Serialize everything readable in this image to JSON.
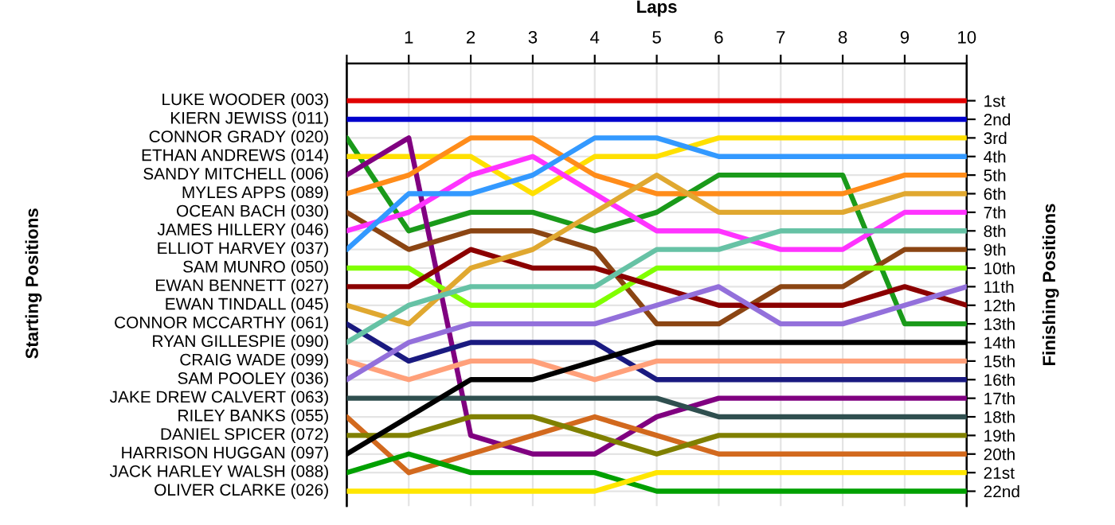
{
  "chart_data": {
    "type": "line",
    "xlabel": "Laps",
    "annotations": [
      "Starting Positions"
    ],
    "y2label": "Finishing Positions",
    "x": [
      0,
      1,
      2,
      3,
      4,
      5,
      6,
      7,
      8,
      9,
      10
    ],
    "xlim": [
      0,
      10
    ],
    "xticks": [
      {
        "value": 0,
        "label": null
      },
      1,
      2,
      3,
      4,
      5,
      6,
      7,
      8,
      9,
      10
    ],
    "y2lim": [
      22.8,
      -1
    ],
    "y2ticks": [
      {
        "value": 1,
        "label": "1st"
      },
      {
        "value": 2,
        "label": "2nd"
      },
      {
        "value": 3,
        "label": "3rd"
      },
      {
        "value": 4,
        "label": "4th"
      },
      {
        "value": 5,
        "label": "5th"
      },
      {
        "value": 6,
        "label": "6th"
      },
      {
        "value": 7,
        "label": "7th"
      },
      {
        "value": 8,
        "label": "8th"
      },
      {
        "value": 9,
        "label": "9th"
      },
      {
        "value": 10,
        "label": "10th"
      },
      {
        "value": 11,
        "label": "11th"
      },
      {
        "value": 12,
        "label": "12th"
      },
      {
        "value": 13,
        "label": "13th"
      },
      {
        "value": 14,
        "label": "14th"
      },
      {
        "value": 15,
        "label": "15th"
      },
      {
        "value": 16,
        "label": "16th"
      },
      {
        "value": 17,
        "label": "17th"
      },
      {
        "value": 18,
        "label": "18th"
      },
      {
        "value": 19,
        "label": "19th"
      },
      {
        "value": 20,
        "label": "20th"
      },
      {
        "value": 21,
        "label": "21st"
      },
      {
        "value": 22,
        "label": "22nd"
      }
    ],
    "grid": true,
    "marker": "none",
    "line_style": "solid",
    "series": [
      {
        "name": "LUKE WOODER (003)",
        "axis": "y2",
        "color": "#e00000",
        "values": [
          1,
          1,
          1,
          1,
          1,
          1,
          1,
          1,
          1,
          1,
          1
        ]
      },
      {
        "name": "KIERN JEWISS (011)",
        "axis": "y2",
        "color": "#0000cc",
        "values": [
          2,
          2,
          2,
          2,
          2,
          2,
          2,
          2,
          2,
          2,
          2
        ]
      },
      {
        "name": "CONNOR GRADY (020)",
        "axis": "y2",
        "color": "#1a9a1a",
        "values": [
          3,
          8,
          7,
          7,
          8,
          7,
          5,
          5,
          5,
          13,
          13
        ]
      },
      {
        "name": "ETHAN ANDREWS (014)",
        "axis": "y2",
        "color": "#ffe000",
        "values": [
          4,
          4,
          4,
          6,
          4,
          4,
          3,
          3,
          3,
          3,
          3
        ]
      },
      {
        "name": "SANDY MITCHELL (006)",
        "axis": "y2",
        "color": "#800080",
        "values": [
          5,
          3,
          19,
          20,
          20,
          18,
          17,
          17,
          17,
          17,
          17
        ]
      },
      {
        "name": "MYLES APPS (089)",
        "axis": "y2",
        "color": "#ff8c1a",
        "values": [
          6,
          5,
          3,
          3,
          5,
          6,
          6,
          6,
          6,
          5,
          5
        ]
      },
      {
        "name": "OCEAN BACH (030)",
        "axis": "y2",
        "color": "#8b4513",
        "values": [
          7,
          9,
          8,
          8,
          9,
          13,
          13,
          11,
          11,
          9,
          9
        ]
      },
      {
        "name": "JAMES HILLERY (046)",
        "axis": "y2",
        "color": "#ff33ff",
        "values": [
          8,
          7,
          5,
          4,
          6,
          8,
          8,
          9,
          9,
          7,
          7
        ]
      },
      {
        "name": "ELLIOT HARVEY (037)",
        "axis": "y2",
        "color": "#3399ff",
        "values": [
          9,
          6,
          6,
          5,
          3,
          3,
          4,
          4,
          4,
          4,
          4
        ]
      },
      {
        "name": "SAM MUNRO (050)",
        "axis": "y2",
        "color": "#80ff00",
        "values": [
          10,
          10,
          12,
          12,
          12,
          10,
          10,
          10,
          10,
          10,
          10
        ]
      },
      {
        "name": "EWAN BENNETT (027)",
        "axis": "y2",
        "color": "#8b0000",
        "values": [
          11,
          11,
          9,
          10,
          10,
          11,
          12,
          12,
          12,
          11,
          12
        ]
      },
      {
        "name": "EWAN TINDALL (045)",
        "axis": "y2",
        "color": "#e0a830",
        "values": [
          12,
          13,
          10,
          9,
          7,
          5,
          7,
          7,
          7,
          6,
          6
        ]
      },
      {
        "name": "CONNOR MCCARTHY (061)",
        "axis": "y2",
        "color": "#1a1a80",
        "values": [
          13,
          15,
          14,
          14,
          14,
          16,
          16,
          16,
          16,
          16,
          16
        ]
      },
      {
        "name": "RYAN GILLESPIE (090)",
        "axis": "y2",
        "color": "#66c2a5",
        "values": [
          14,
          12,
          11,
          11,
          11,
          9,
          9,
          8,
          8,
          8,
          8
        ]
      },
      {
        "name": "CRAIG WADE (099)",
        "axis": "y2",
        "color": "#ffa07a",
        "values": [
          15,
          16,
          15,
          15,
          16,
          15,
          15,
          15,
          15,
          15,
          15
        ]
      },
      {
        "name": "SAM POOLEY (036)",
        "axis": "y2",
        "color": "#9370db",
        "values": [
          16,
          14,
          13,
          13,
          13,
          12,
          11,
          13,
          13,
          12,
          11
        ]
      },
      {
        "name": "JAKE DREW CALVERT (063)",
        "axis": "y2",
        "color": "#2f4f4f",
        "values": [
          17,
          17,
          17,
          17,
          17,
          17,
          18,
          18,
          18,
          18,
          18
        ]
      },
      {
        "name": "RILEY BANKS (055)",
        "axis": "y2",
        "color": "#d2691e",
        "values": [
          18,
          21,
          20,
          19,
          18,
          19,
          20,
          20,
          20,
          20,
          20
        ]
      },
      {
        "name": "DANIEL SPICER (072)",
        "axis": "y2",
        "color": "#808000",
        "values": [
          19,
          19,
          18,
          18,
          19,
          20,
          19,
          19,
          19,
          19,
          19
        ]
      },
      {
        "name": "HARRISON HUGGAN (097)",
        "axis": "y2",
        "color": "#000000",
        "values": [
          20,
          18,
          16,
          16,
          15,
          14,
          14,
          14,
          14,
          14,
          14
        ]
      },
      {
        "name": "JACK HARLEY WALSH (088)",
        "axis": "y2",
        "color": "#00a000",
        "values": [
          21,
          20,
          21,
          21,
          21,
          22,
          22,
          22,
          22,
          22,
          22
        ]
      },
      {
        "name": "OLIVER CLARKE (026)",
        "axis": "y2",
        "color": "#ffe600",
        "values": [
          22,
          22,
          22,
          22,
          22,
          21,
          21,
          21,
          21,
          21,
          21
        ]
      }
    ]
  }
}
